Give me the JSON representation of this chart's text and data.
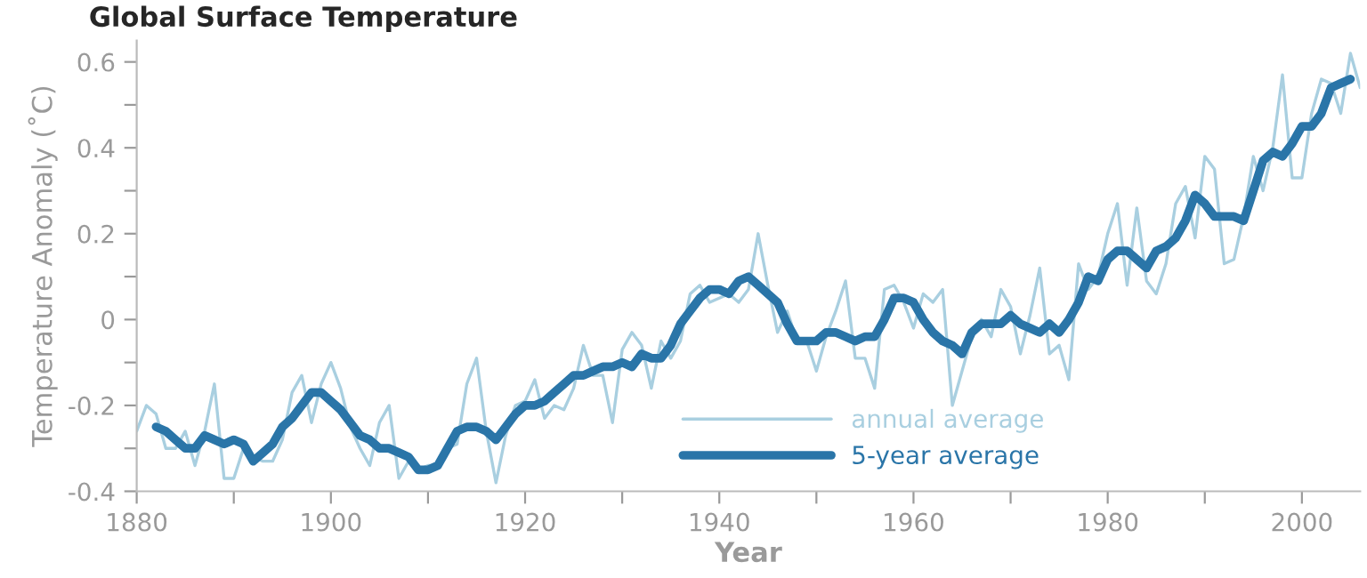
{
  "chart_data": {
    "type": "line",
    "title": "Global Surface Temperature",
    "xlabel": "Year",
    "ylabel": "Temperature Anomaly (˚C)",
    "xlim": [
      1880,
      2006
    ],
    "ylim": [
      -0.4,
      0.65
    ],
    "xticks": [
      1880,
      {
        "value": 1890,
        "label": null
      },
      1900,
      {
        "value": 1910,
        "label": null
      },
      1920,
      {
        "value": 1930,
        "label": null
      },
      1940,
      {
        "value": 1950,
        "label": null
      },
      1960,
      {
        "value": 1970,
        "label": null
      },
      1980,
      {
        "value": 1990,
        "label": null
      },
      2000
    ],
    "yticks": [
      -0.4,
      {
        "value": -0.3,
        "label": null
      },
      -0.2,
      {
        "value": -0.1,
        "label": null
      },
      0,
      {
        "value": 0.1,
        "label": null
      },
      0.2,
      {
        "value": 0.3,
        "label": null
      },
      0.4,
      {
        "value": 0.5,
        "label": null
      },
      0.6
    ],
    "grid": false,
    "legend": "bottom right",
    "marker": "none",
    "line_style": "solid",
    "series": [
      {
        "name": "annual average",
        "color": "#a9cfe0",
        "x": [
          1880,
          1881,
          1882,
          1883,
          1884,
          1885,
          1886,
          1887,
          1888,
          1889,
          1890,
          1891,
          1892,
          1893,
          1894,
          1895,
          1896,
          1897,
          1898,
          1899,
          1900,
          1901,
          1902,
          1903,
          1904,
          1905,
          1906,
          1907,
          1908,
          1909,
          1910,
          1911,
          1912,
          1913,
          1914,
          1915,
          1916,
          1917,
          1918,
          1919,
          1920,
          1921,
          1922,
          1923,
          1924,
          1925,
          1926,
          1927,
          1928,
          1929,
          1930,
          1931,
          1932,
          1933,
          1934,
          1935,
          1936,
          1937,
          1938,
          1939,
          1940,
          1941,
          1942,
          1943,
          1944,
          1945,
          1946,
          1947,
          1948,
          1949,
          1950,
          1951,
          1952,
          1953,
          1954,
          1955,
          1956,
          1957,
          1958,
          1959,
          1960,
          1961,
          1962,
          1963,
          1964,
          1965,
          1966,
          1967,
          1968,
          1969,
          1970,
          1971,
          1972,
          1973,
          1974,
          1975,
          1976,
          1977,
          1978,
          1979,
          1980,
          1981,
          1982,
          1983,
          1984,
          1985,
          1986,
          1987,
          1988,
          1989,
          1990,
          1991,
          1992,
          1993,
          1994,
          1995,
          1996,
          1997,
          1998,
          1999,
          2000,
          2001,
          2002,
          2003,
          2004,
          2005,
          2006
        ],
        "values": [
          -0.26,
          -0.2,
          -0.22,
          -0.3,
          -0.3,
          -0.26,
          -0.34,
          -0.26,
          -0.15,
          -0.37,
          -0.37,
          -0.3,
          -0.32,
          -0.33,
          -0.33,
          -0.28,
          -0.17,
          -0.13,
          -0.24,
          -0.15,
          -0.1,
          -0.16,
          -0.25,
          -0.3,
          -0.34,
          -0.24,
          -0.2,
          -0.37,
          -0.33,
          -0.35,
          -0.34,
          -0.34,
          -0.3,
          -0.29,
          -0.15,
          -0.09,
          -0.26,
          -0.38,
          -0.27,
          -0.2,
          -0.19,
          -0.14,
          -0.23,
          -0.2,
          -0.21,
          -0.16,
          -0.06,
          -0.13,
          -0.13,
          -0.24,
          -0.07,
          -0.03,
          -0.06,
          -0.16,
          -0.05,
          -0.09,
          -0.05,
          0.06,
          0.08,
          0.04,
          0.05,
          0.06,
          0.04,
          0.07,
          0.2,
          0.08,
          -0.03,
          0.02,
          -0.05,
          -0.05,
          -0.12,
          -0.04,
          0.02,
          0.09,
          -0.09,
          -0.09,
          -0.16,
          0.07,
          0.08,
          0.04,
          -0.02,
          0.06,
          0.04,
          0.07,
          -0.2,
          -0.12,
          -0.04,
          0.0,
          -0.04,
          0.07,
          0.03,
          -0.08,
          0.01,
          0.12,
          -0.08,
          -0.06,
          -0.14,
          0.13,
          0.07,
          0.1,
          0.2,
          0.27,
          0.08,
          0.26,
          0.09,
          0.06,
          0.13,
          0.27,
          0.31,
          0.19,
          0.38,
          0.35,
          0.13,
          0.14,
          0.24,
          0.38,
          0.3,
          0.4,
          0.57,
          0.33,
          0.33,
          0.48,
          0.56,
          0.55,
          0.48,
          0.62,
          0.54
        ]
      },
      {
        "name": "5-year average",
        "color": "#2a75a8",
        "x": [
          1882,
          1883,
          1884,
          1885,
          1886,
          1887,
          1888,
          1889,
          1890,
          1891,
          1892,
          1893,
          1894,
          1895,
          1896,
          1897,
          1898,
          1899,
          1900,
          1901,
          1902,
          1903,
          1904,
          1905,
          1906,
          1907,
          1908,
          1909,
          1910,
          1911,
          1912,
          1913,
          1914,
          1915,
          1916,
          1917,
          1918,
          1919,
          1920,
          1921,
          1922,
          1923,
          1924,
          1925,
          1926,
          1927,
          1928,
          1929,
          1930,
          1931,
          1932,
          1933,
          1934,
          1935,
          1936,
          1937,
          1938,
          1939,
          1940,
          1941,
          1942,
          1943,
          1944,
          1945,
          1946,
          1947,
          1948,
          1949,
          1950,
          1951,
          1952,
          1953,
          1954,
          1955,
          1956,
          1957,
          1958,
          1959,
          1960,
          1961,
          1962,
          1963,
          1964,
          1965,
          1966,
          1967,
          1968,
          1969,
          1970,
          1971,
          1972,
          1973,
          1974,
          1975,
          1976,
          1977,
          1978,
          1979,
          1980,
          1981,
          1982,
          1983,
          1984,
          1985,
          1986,
          1987,
          1988,
          1989,
          1990,
          1991,
          1992,
          1993,
          1994,
          1995,
          1996,
          1997,
          1998,
          1999,
          2000,
          2001,
          2002,
          2003,
          2004,
          2005
        ],
        "values": [
          -0.25,
          -0.26,
          -0.28,
          -0.3,
          -0.3,
          -0.27,
          -0.28,
          -0.29,
          -0.28,
          -0.29,
          -0.33,
          -0.31,
          -0.29,
          -0.25,
          -0.23,
          -0.2,
          -0.17,
          -0.17,
          -0.19,
          -0.21,
          -0.24,
          -0.27,
          -0.28,
          -0.3,
          -0.3,
          -0.31,
          -0.32,
          -0.35,
          -0.35,
          -0.34,
          -0.3,
          -0.26,
          -0.25,
          -0.25,
          -0.26,
          -0.28,
          -0.25,
          -0.22,
          -0.2,
          -0.2,
          -0.19,
          -0.17,
          -0.15,
          -0.13,
          -0.13,
          -0.12,
          -0.11,
          -0.11,
          -0.1,
          -0.11,
          -0.08,
          -0.09,
          -0.09,
          -0.06,
          -0.01,
          0.02,
          0.05,
          0.07,
          0.07,
          0.06,
          0.09,
          0.1,
          0.08,
          0.06,
          0.04,
          -0.01,
          -0.05,
          -0.05,
          -0.05,
          -0.03,
          -0.03,
          -0.04,
          -0.05,
          -0.04,
          -0.04,
          0.0,
          0.05,
          0.05,
          0.04,
          0.0,
          -0.03,
          -0.05,
          -0.06,
          -0.08,
          -0.03,
          -0.01,
          -0.01,
          -0.01,
          0.01,
          -0.01,
          -0.02,
          -0.03,
          -0.01,
          -0.03,
          0.0,
          0.04,
          0.1,
          0.09,
          0.14,
          0.16,
          0.16,
          0.14,
          0.12,
          0.16,
          0.17,
          0.19,
          0.23,
          0.29,
          0.27,
          0.24,
          0.24,
          0.24,
          0.23,
          0.3,
          0.37,
          0.39,
          0.38,
          0.41,
          0.45,
          0.45,
          0.48,
          0.54,
          0.55,
          0.56
        ]
      }
    ]
  }
}
